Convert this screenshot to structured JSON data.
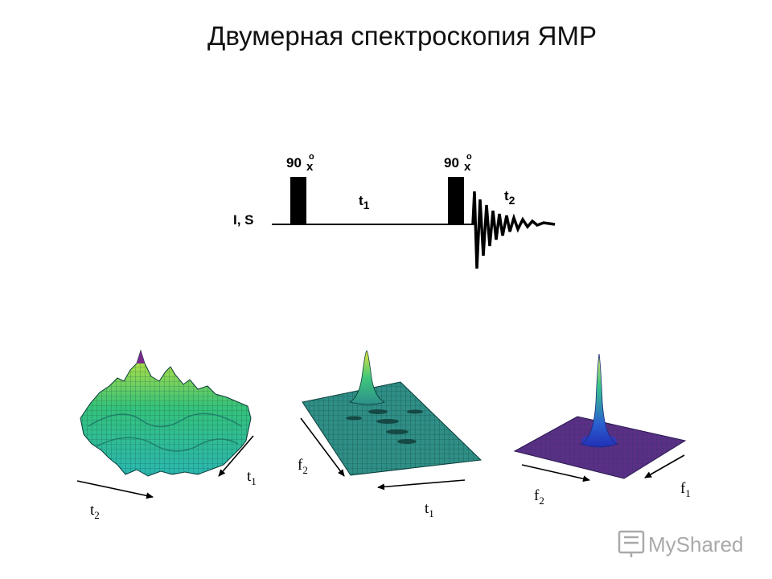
{
  "title": "Двумерная спектроскопия ЯМР",
  "pulse_sequence": {
    "channel_label": "I, S",
    "pulse1_angle": "90",
    "pulse1_deg": "o",
    "pulse1_phase": "x",
    "pulse2_angle": "90",
    "pulse2_deg": "o",
    "pulse2_phase": "x",
    "t1_base": "t",
    "t1_sub": "1",
    "t2_base": "t",
    "t2_sub": "2"
  },
  "plots": [
    {
      "axis_a_base": "t",
      "axis_a_sub": "2",
      "axis_b_base": "t",
      "axis_b_sub": "1"
    },
    {
      "axis_a_base": "f",
      "axis_a_sub": "2",
      "axis_b_base": "t",
      "axis_b_sub": "1"
    },
    {
      "axis_a_base": "f",
      "axis_a_sub": "2",
      "axis_b_base": "f",
      "axis_b_sub": "1"
    }
  ],
  "watermark": "MyShared"
}
